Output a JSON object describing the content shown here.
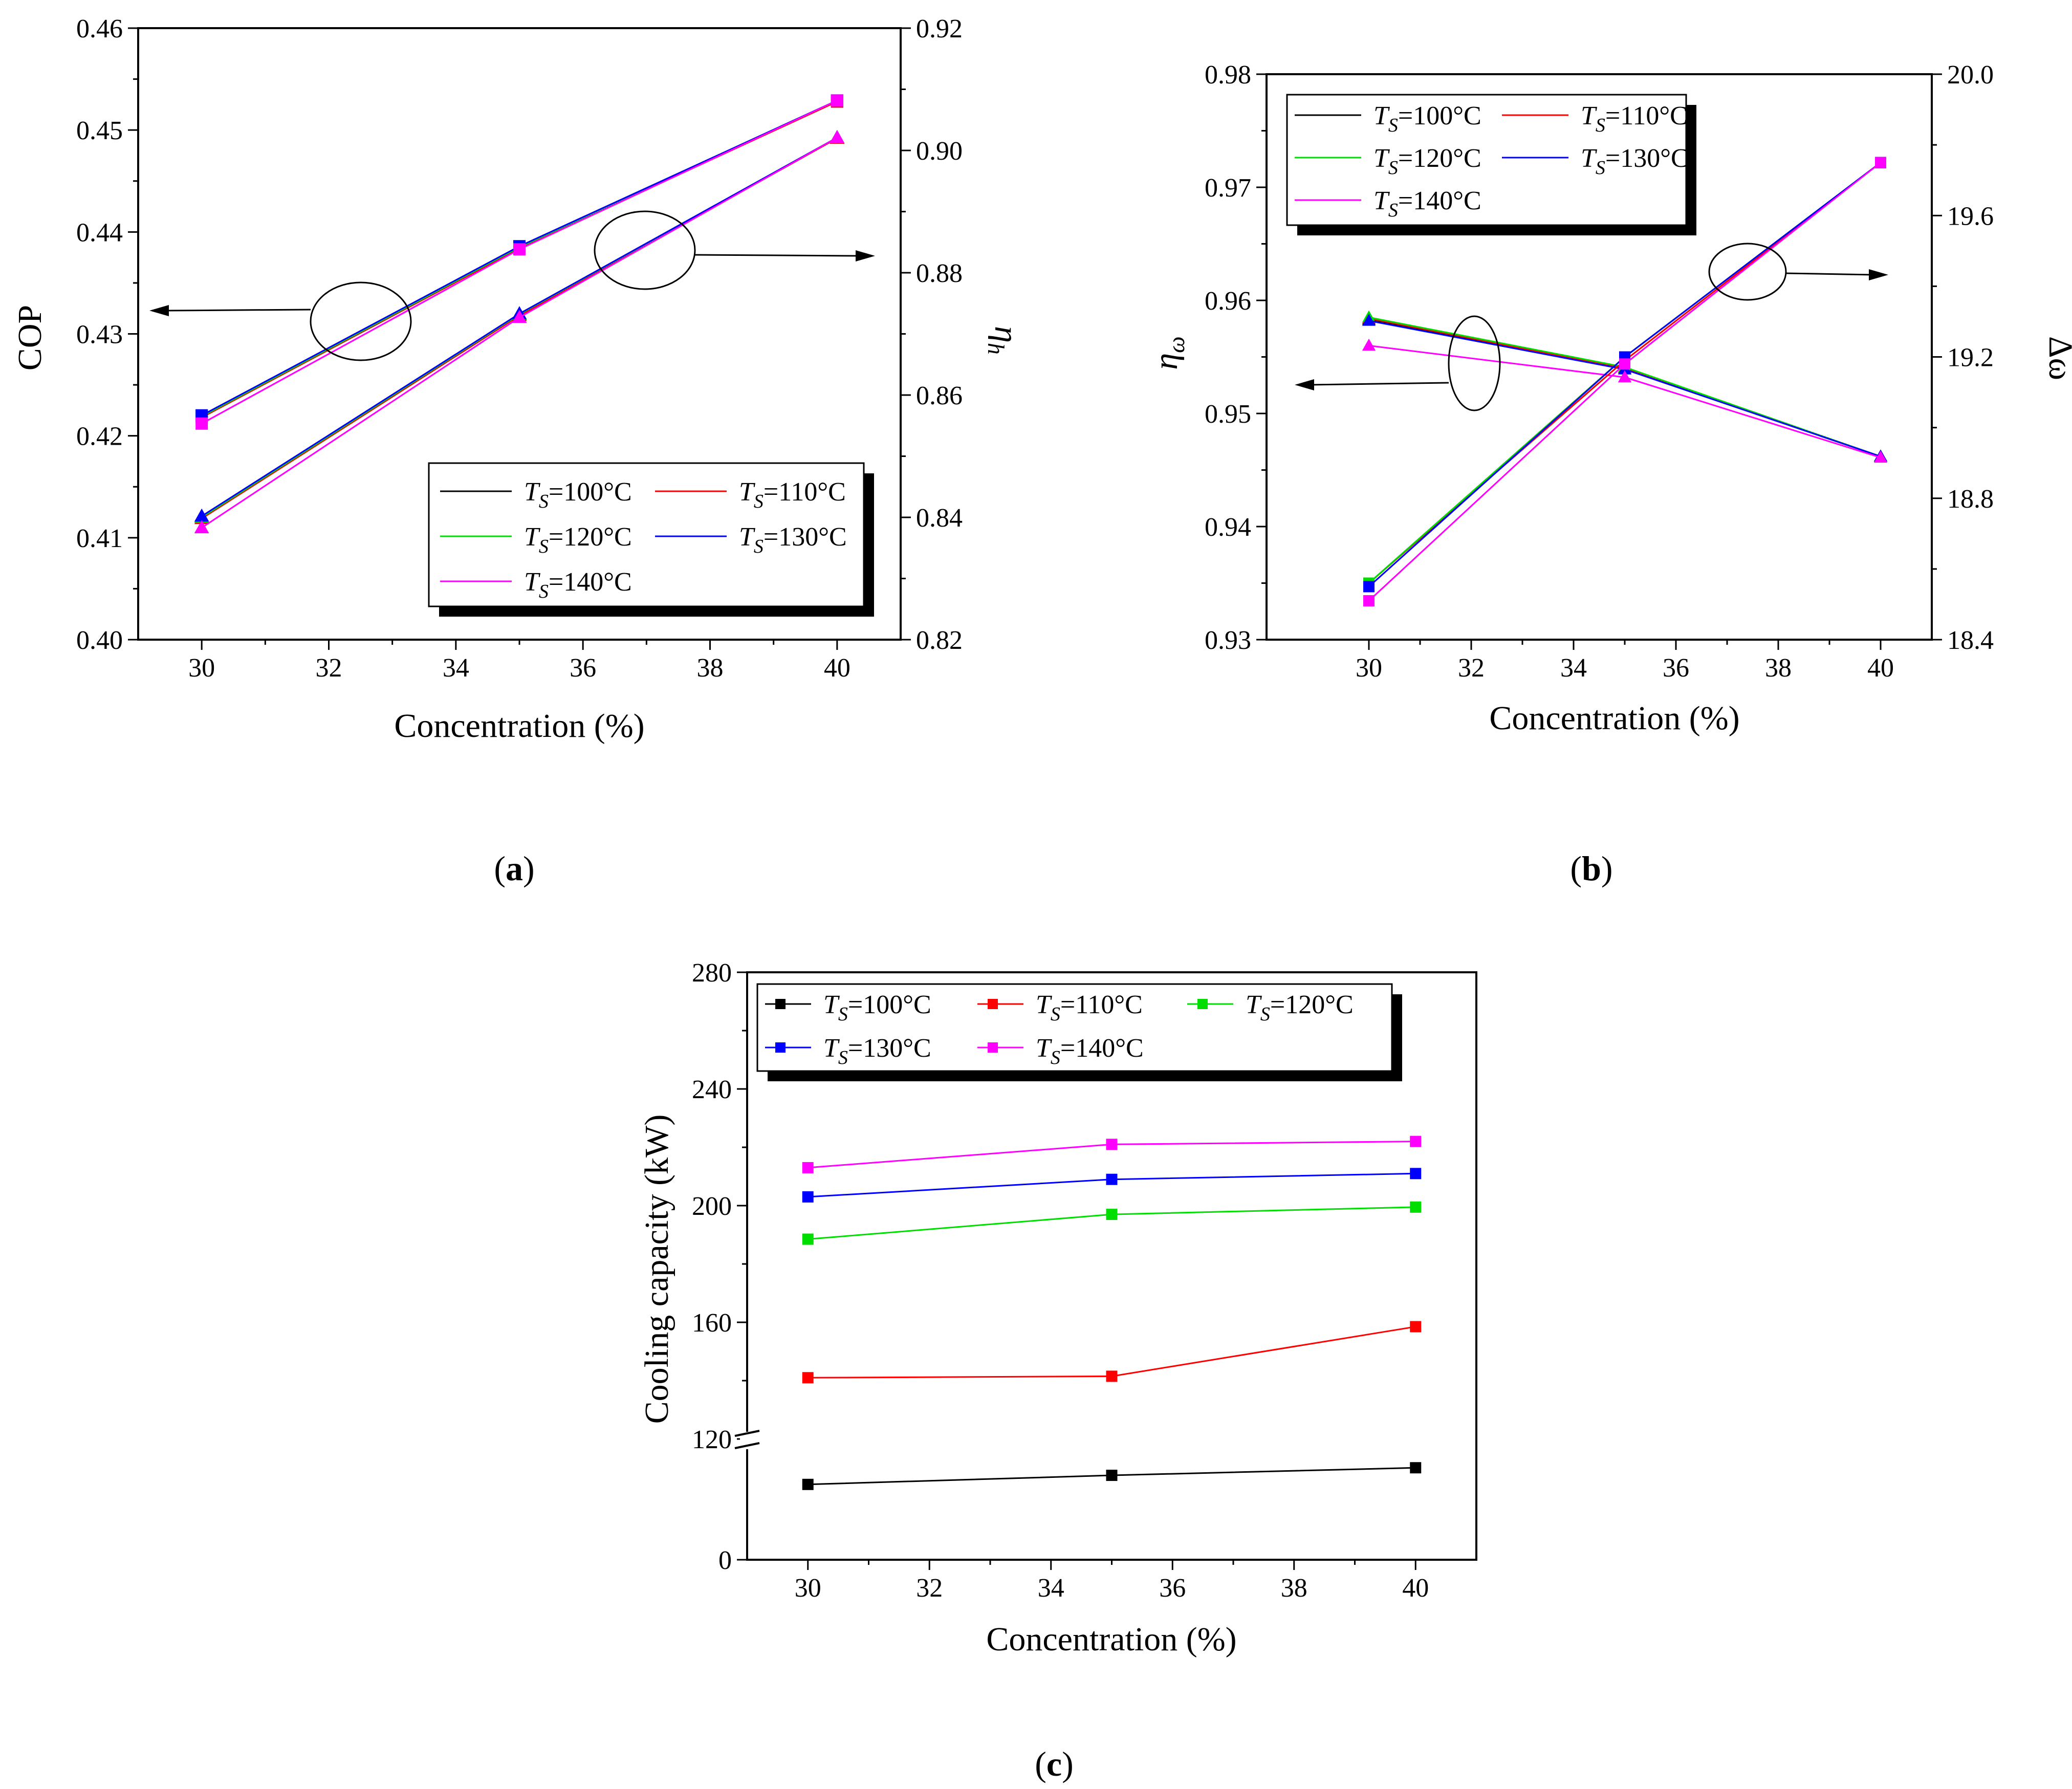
{
  "colors": {
    "T100": "#000000",
    "T110": "#ff0000",
    "T120": "#00dd00",
    "T130": "#0000ff",
    "T140": "#ff00ff"
  },
  "legend_entries": [
    {
      "key": "T100",
      "prefix": "T",
      "sub": "S",
      "text": "=100°C"
    },
    {
      "key": "T110",
      "prefix": "T",
      "sub": "S",
      "text": "=110°C"
    },
    {
      "key": "T120",
      "prefix": "T",
      "sub": "S",
      "text": "=120°C"
    },
    {
      "key": "T130",
      "prefix": "T",
      "sub": "S",
      "text": "=130°C"
    },
    {
      "key": "T140",
      "prefix": "T",
      "sub": "S",
      "text": "=140°C"
    }
  ],
  "panel_labels": {
    "a": "a",
    "b": "b",
    "c": "c"
  },
  "chart_data": [
    {
      "id": "a",
      "type": "line",
      "xlabel": "Concentration (%)",
      "xlim": [
        29,
        41
      ],
      "xticks": [
        30,
        32,
        34,
        36,
        38,
        40
      ],
      "left": {
        "label": "COP",
        "ylim": [
          0.4,
          0.46
        ],
        "ticks": [
          "0.40",
          "0.41",
          "0.42",
          "0.43",
          "0.44",
          "0.45",
          "0.46"
        ]
      },
      "right": {
        "label_main": "η",
        "label_sub": "h",
        "ylim": [
          0.82,
          0.92
        ],
        "ticks": [
          "0.82",
          "0.84",
          "0.86",
          "0.88",
          "0.90",
          "0.92"
        ]
      },
      "x": [
        30,
        35,
        40
      ],
      "series": [
        {
          "name": "T100",
          "axis": "left",
          "values": [
            0.422,
            0.4385,
            0.4528
          ],
          "marker": "square"
        },
        {
          "name": "T110",
          "axis": "left",
          "values": [
            0.4218,
            0.4384,
            0.4528
          ],
          "marker": "square"
        },
        {
          "name": "T120",
          "axis": "left",
          "values": [
            0.4219,
            0.4385,
            0.4529
          ],
          "marker": "square"
        },
        {
          "name": "T130",
          "axis": "left",
          "values": [
            0.422,
            0.4386,
            0.4529
          ],
          "marker": "square"
        },
        {
          "name": "T140",
          "axis": "left",
          "values": [
            0.4212,
            0.4383,
            0.4529
          ],
          "marker": "square"
        },
        {
          "name": "T100",
          "axis": "right",
          "values": [
            0.84,
            0.873,
            0.902
          ],
          "marker": "triangle"
        },
        {
          "name": "T110",
          "axis": "right",
          "values": [
            0.8398,
            0.873,
            0.902
          ],
          "marker": "triangle"
        },
        {
          "name": "T120",
          "axis": "right",
          "values": [
            0.84,
            0.8732,
            0.9021
          ],
          "marker": "triangle"
        },
        {
          "name": "T130",
          "axis": "right",
          "values": [
            0.8402,
            0.8733,
            0.9021
          ],
          "marker": "triangle"
        },
        {
          "name": "T140",
          "axis": "right",
          "values": [
            0.8383,
            0.8727,
            0.9021
          ],
          "marker": "triangle"
        }
      ]
    },
    {
      "id": "b",
      "type": "line",
      "xlabel": "Concentration (%)",
      "xlim": [
        28,
        41
      ],
      "xticks": [
        30,
        32,
        34,
        36,
        38,
        40
      ],
      "left": {
        "label_main": "η",
        "label_sub": "ω",
        "ylim": [
          0.93,
          0.98
        ],
        "ticks": [
          "0.93",
          "0.94",
          "0.95",
          "0.96",
          "0.97",
          "0.98"
        ]
      },
      "right": {
        "label": "Δω",
        "ylim": [
          18.4,
          20.0
        ],
        "ticks": [
          "18.4",
          "18.8",
          "19.2",
          "19.6",
          "20.0"
        ]
      },
      "x": [
        30,
        35,
        40
      ],
      "series": [
        {
          "name": "T100",
          "axis": "left",
          "values": [
            0.9583,
            0.954,
            0.9462
          ],
          "marker": "triangle"
        },
        {
          "name": "T110",
          "axis": "left",
          "values": [
            0.9584,
            0.954,
            0.9462
          ],
          "marker": "triangle"
        },
        {
          "name": "T120",
          "axis": "left",
          "values": [
            0.9585,
            0.9541,
            0.9462
          ],
          "marker": "triangle"
        },
        {
          "name": "T130",
          "axis": "left",
          "values": [
            0.9582,
            0.9539,
            0.9462
          ],
          "marker": "triangle"
        },
        {
          "name": "T140",
          "axis": "left",
          "values": [
            0.956,
            0.9532,
            0.9461
          ],
          "marker": "triangle"
        },
        {
          "name": "T100",
          "axis": "right",
          "values": [
            18.56,
            19.2,
            19.75
          ],
          "marker": "square"
        },
        {
          "name": "T110",
          "axis": "right",
          "values": [
            18.56,
            19.19,
            19.75
          ],
          "marker": "square"
        },
        {
          "name": "T120",
          "axis": "right",
          "values": [
            18.56,
            19.2,
            19.75
          ],
          "marker": "square"
        },
        {
          "name": "T130",
          "axis": "right",
          "values": [
            18.55,
            19.2,
            19.75
          ],
          "marker": "square"
        },
        {
          "name": "T140",
          "axis": "right",
          "values": [
            18.51,
            19.18,
            19.75
          ],
          "marker": "square"
        }
      ]
    },
    {
      "id": "c",
      "type": "line",
      "xlabel": "Concentration (%)",
      "ylabel": "Cooling capacity (kW)",
      "xlim": [
        29,
        41
      ],
      "xticks": [
        30,
        32,
        34,
        36,
        38,
        40
      ],
      "yticks": [
        "0",
        "120",
        "160",
        "200",
        "240",
        "280"
      ],
      "y_break": "axis break between 0 and 120",
      "x": [
        30,
        35,
        40
      ],
      "series": [
        {
          "name": "T100",
          "values": [
            105,
            108,
            110.5
          ]
        },
        {
          "name": "T110",
          "values": [
            141,
            141.5,
            158.5
          ]
        },
        {
          "name": "T120",
          "values": [
            188.5,
            197,
            199.5
          ]
        },
        {
          "name": "T130",
          "values": [
            203,
            209,
            211
          ]
        },
        {
          "name": "T140",
          "values": [
            213,
            221,
            222
          ]
        }
      ]
    }
  ]
}
